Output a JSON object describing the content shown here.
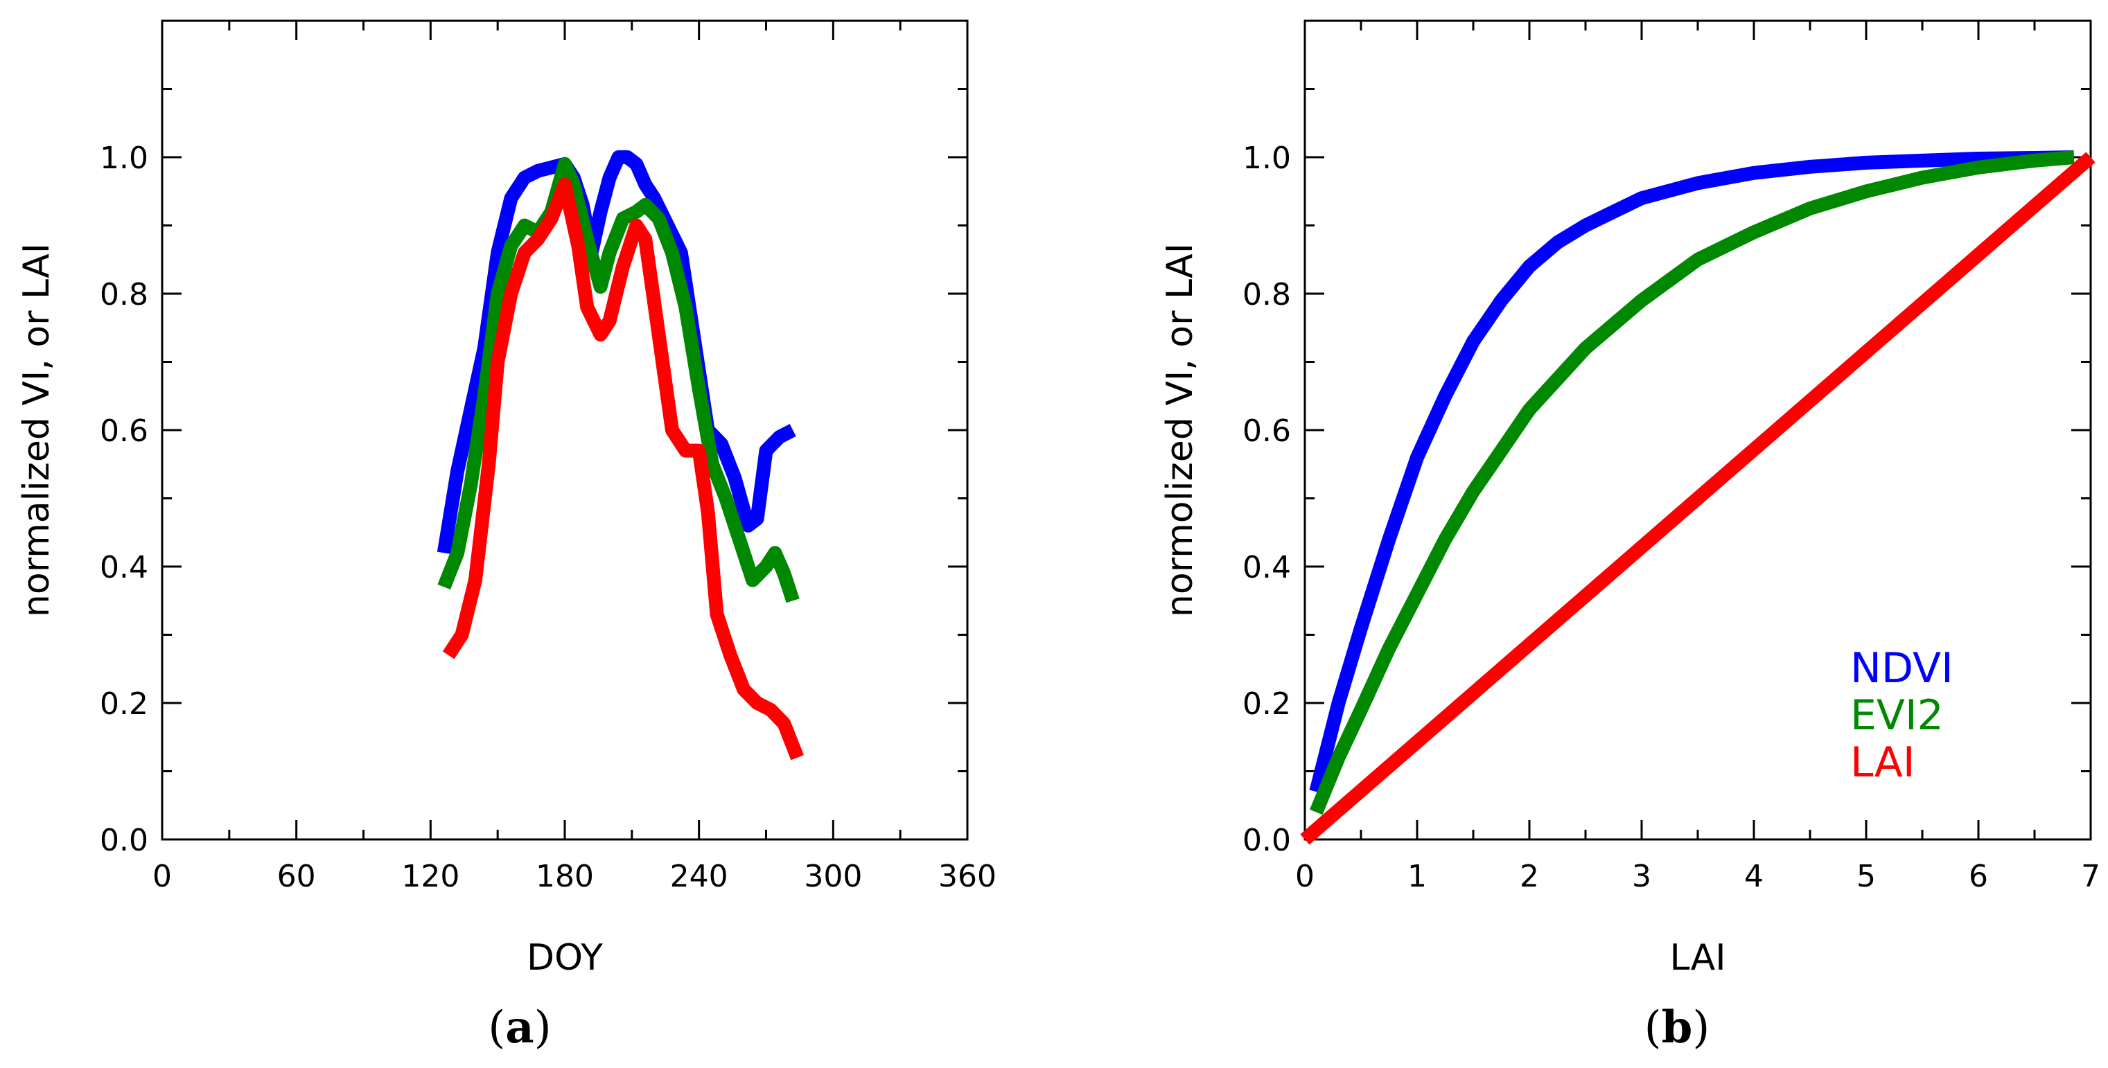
{
  "colors": {
    "NDVI": "#0000ff",
    "EVI2": "#008800",
    "LAI": "#ff0000"
  },
  "chart_data": [
    {
      "type": "line",
      "panel": "(a)",
      "panel_letter": "a",
      "xlabel": "DOY",
      "ylabel": "normalized VI, or LAI",
      "xlim": [
        0,
        360
      ],
      "ylim": [
        0,
        1.2
      ],
      "xticks": [
        0,
        60,
        120,
        180,
        240,
        300,
        360
      ],
      "yticks": [
        0.0,
        0.2,
        0.4,
        0.6,
        0.8,
        1.0
      ],
      "xtick_labels": [
        "0",
        "60",
        "120",
        "180",
        "240",
        "300",
        "360"
      ],
      "ytick_labels": [
        "0.0",
        "0.2",
        "0.4",
        "0.6",
        "0.8",
        "1.0"
      ],
      "series": [
        {
          "name": "NDVI",
          "color_key": "NDVI",
          "x": [
            126,
            132,
            138,
            144,
            150,
            156,
            162,
            168,
            174,
            180,
            184,
            188,
            192,
            196,
            200,
            204,
            208,
            212,
            216,
            220,
            226,
            232,
            238,
            244,
            250,
            256,
            262,
            266,
            270,
            276,
            282
          ],
          "y": [
            0.42,
            0.54,
            0.63,
            0.72,
            0.86,
            0.94,
            0.97,
            0.98,
            0.985,
            0.99,
            0.97,
            0.93,
            0.86,
            0.92,
            0.97,
            1.0,
            1.0,
            0.99,
            0.96,
            0.94,
            0.9,
            0.86,
            0.73,
            0.6,
            0.58,
            0.53,
            0.46,
            0.47,
            0.57,
            0.59,
            0.6
          ]
        },
        {
          "name": "EVI2",
          "color_key": "EVI2",
          "x": [
            126,
            132,
            138,
            144,
            150,
            156,
            162,
            168,
            174,
            180,
            184,
            190,
            196,
            200,
            206,
            212,
            216,
            222,
            228,
            234,
            240,
            246,
            252,
            258,
            264,
            270,
            274,
            278,
            282
          ],
          "y": [
            0.37,
            0.42,
            0.52,
            0.65,
            0.8,
            0.87,
            0.9,
            0.89,
            0.92,
            0.99,
            0.96,
            0.88,
            0.81,
            0.86,
            0.91,
            0.92,
            0.93,
            0.91,
            0.86,
            0.78,
            0.66,
            0.55,
            0.5,
            0.44,
            0.38,
            0.4,
            0.42,
            0.39,
            0.35
          ]
        },
        {
          "name": "LAI",
          "color_key": "LAI",
          "x": [
            128,
            134,
            140,
            146,
            150,
            156,
            162,
            168,
            174,
            180,
            186,
            190,
            196,
            200,
            206,
            212,
            216,
            222,
            228,
            234,
            240,
            244,
            248,
            254,
            260,
            266,
            272,
            278,
            284
          ],
          "y": [
            0.27,
            0.3,
            0.38,
            0.55,
            0.7,
            0.8,
            0.86,
            0.88,
            0.91,
            0.96,
            0.87,
            0.78,
            0.74,
            0.76,
            0.84,
            0.9,
            0.88,
            0.74,
            0.6,
            0.57,
            0.57,
            0.48,
            0.33,
            0.27,
            0.22,
            0.2,
            0.19,
            0.17,
            0.12
          ]
        }
      ]
    },
    {
      "type": "line",
      "panel": "(b)",
      "panel_letter": "b",
      "xlabel": "LAI",
      "ylabel": "normolized VI, or LAI",
      "xlim": [
        0,
        7
      ],
      "ylim": [
        0,
        1.2
      ],
      "xticks": [
        0,
        1,
        2,
        3,
        4,
        5,
        6,
        7
      ],
      "yticks": [
        0.0,
        0.2,
        0.4,
        0.6,
        0.8,
        1.0
      ],
      "xtick_labels": [
        "0",
        "1",
        "2",
        "3",
        "4",
        "5",
        "6",
        "7"
      ],
      "ytick_labels": [
        "0.0",
        "0.2",
        "0.4",
        "0.6",
        "0.8",
        "1.0"
      ],
      "legend": {
        "position": "bottom-right",
        "entries": [
          "NDVI",
          "EVI2",
          "LAI"
        ]
      },
      "series": [
        {
          "name": "NDVI",
          "color_key": "NDVI",
          "x": [
            0.1,
            0.3,
            0.5,
            0.75,
            1.0,
            1.25,
            1.5,
            1.75,
            2.0,
            2.25,
            2.5,
            2.75,
            3.0,
            3.5,
            4.0,
            4.5,
            5.0,
            5.5,
            6.0,
            6.5,
            6.85
          ],
          "y": [
            0.07,
            0.2,
            0.31,
            0.44,
            0.56,
            0.65,
            0.73,
            0.79,
            0.84,
            0.875,
            0.9,
            0.92,
            0.94,
            0.962,
            0.977,
            0.986,
            0.992,
            0.995,
            0.998,
            0.999,
            1.0
          ]
        },
        {
          "name": "EVI2",
          "color_key": "EVI2",
          "x": [
            0.1,
            0.3,
            0.5,
            0.75,
            1.0,
            1.25,
            1.5,
            1.75,
            2.0,
            2.5,
            3.0,
            3.5,
            4.0,
            4.5,
            5.0,
            5.5,
            6.0,
            6.5,
            6.85
          ],
          "y": [
            0.04,
            0.12,
            0.19,
            0.28,
            0.36,
            0.44,
            0.51,
            0.57,
            0.63,
            0.72,
            0.79,
            0.85,
            0.89,
            0.925,
            0.95,
            0.97,
            0.985,
            0.995,
            1.0
          ]
        },
        {
          "name": "LAI",
          "color_key": "LAI",
          "x": [
            0.0,
            7.0
          ],
          "y": [
            0.0,
            1.0
          ]
        }
      ]
    }
  ]
}
